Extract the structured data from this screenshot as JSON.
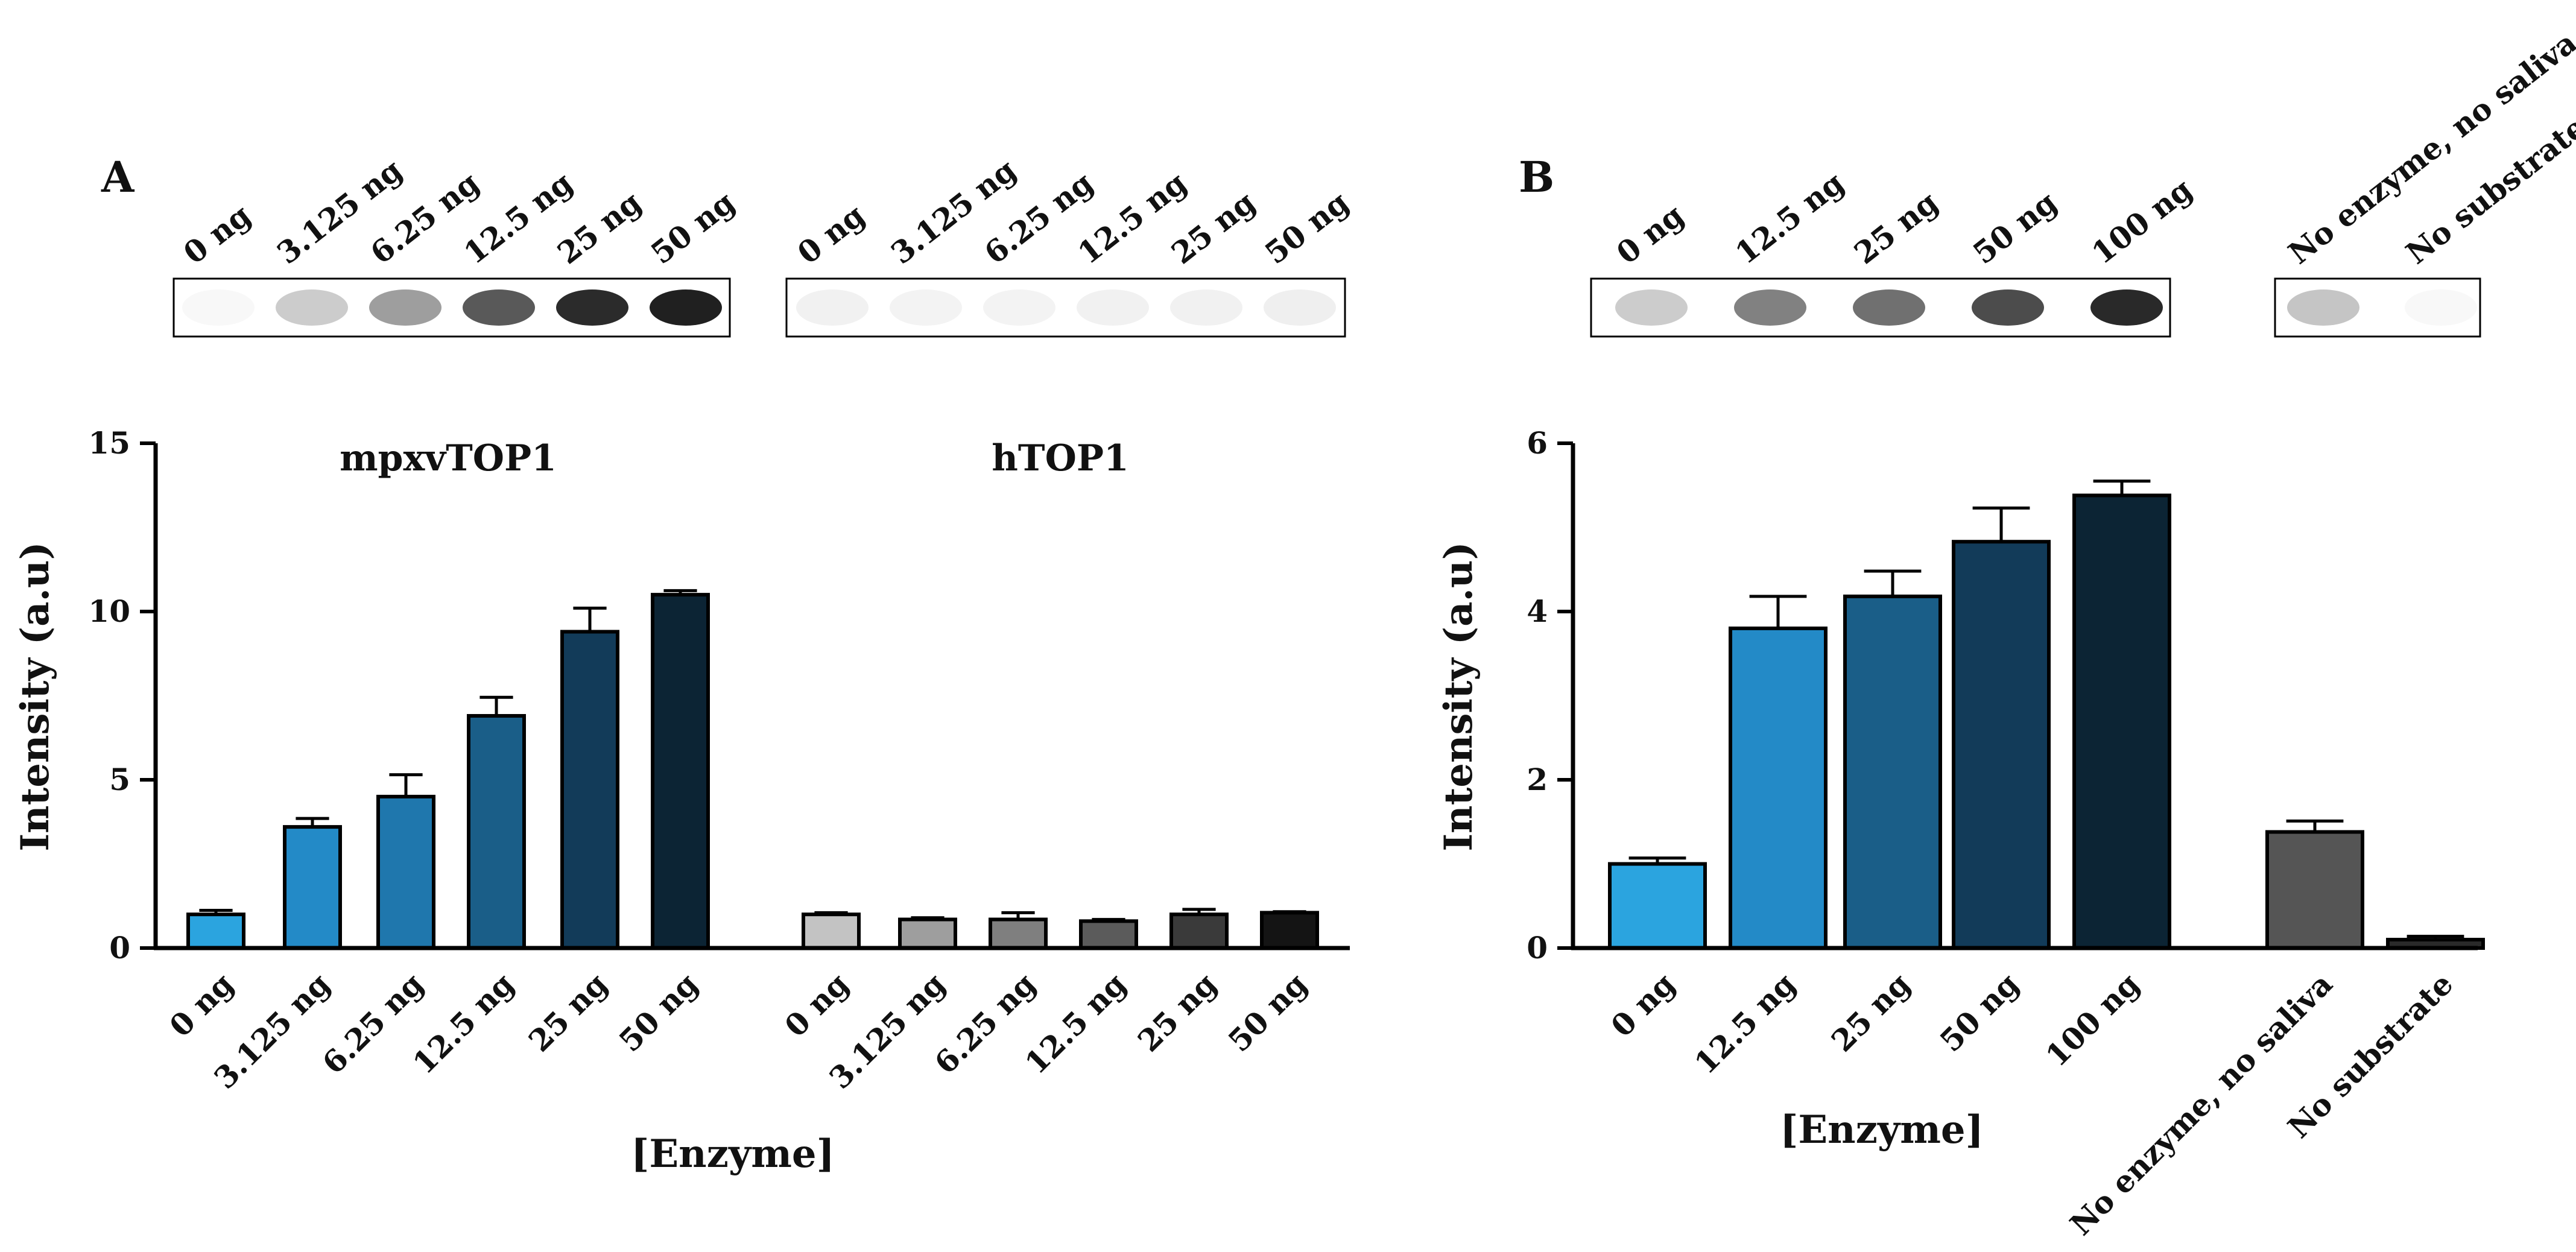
{
  "panels": {
    "A": {
      "letter": "A",
      "gels": [
        {
          "lanes": [
            "0 ng",
            "3.125 ng",
            "6.25 ng",
            "12.5 ng",
            "25 ng",
            "50 ng"
          ],
          "band_darkness": [
            0.03,
            0.22,
            0.42,
            0.72,
            0.92,
            0.97
          ]
        },
        {
          "lanes": [
            "0 ng",
            "3.125 ng",
            "6.25 ng",
            "12.5 ng",
            "25 ng",
            "50 ng"
          ],
          "band_darkness": [
            0.06,
            0.05,
            0.05,
            0.06,
            0.06,
            0.07
          ]
        }
      ]
    },
    "B": {
      "letter": "B",
      "gels": [
        {
          "lanes": [
            "0 ng",
            "12.5 ng",
            "25 ng",
            "50 ng",
            "100 ng"
          ],
          "band_darkness": [
            0.22,
            0.55,
            0.62,
            0.78,
            0.93
          ]
        },
        {
          "lanes": [
            "No enzyme, no saliva",
            "No substrate"
          ],
          "band_darkness": [
            0.25,
            0.03
          ]
        }
      ]
    }
  },
  "chart_data": [
    {
      "type": "bar",
      "panel": "A",
      "ylabel": "Intensity (a.u)",
      "xlabel": "[Enzyme]",
      "ylim": [
        0,
        15
      ],
      "yticks": [
        0,
        5,
        10,
        15
      ],
      "groups": [
        {
          "name": "mpxvTOP1",
          "categories": [
            "0 ng",
            "3.125 ng",
            "6.25 ng",
            "12.5 ng",
            "25 ng",
            "50 ng"
          ],
          "values": [
            1.0,
            3.6,
            4.5,
            6.9,
            9.4,
            10.5
          ],
          "errors": [
            0.12,
            0.25,
            0.65,
            0.55,
            0.7,
            0.12
          ],
          "colors": [
            "#2ba4df",
            "#238ac7",
            "#1f77ad",
            "#1a5e88",
            "#123b59",
            "#0c2434"
          ]
        },
        {
          "name": "hTOP1",
          "categories": [
            "0 ng",
            "3.125 ng",
            "6.25 ng",
            "12.5 ng",
            "25 ng",
            "50 ng"
          ],
          "values": [
            1.0,
            0.85,
            0.85,
            0.8,
            1.0,
            1.05
          ],
          "errors": [
            0.05,
            0.05,
            0.2,
            0.05,
            0.15,
            0.03
          ],
          "colors": [
            "#c3c3c3",
            "#9e9e9e",
            "#7f7f7f",
            "#5b5b5b",
            "#3a3a3a",
            "#141414"
          ]
        }
      ]
    },
    {
      "type": "bar",
      "panel": "B",
      "ylabel": "Intensity (a.u)",
      "xlabel": "[Enzyme]",
      "ylim": [
        0,
        6
      ],
      "yticks": [
        0,
        2,
        4,
        6
      ],
      "groups": [
        {
          "name": "",
          "categories": [
            "0 ng",
            "12.5 ng",
            "25 ng",
            "50 ng",
            "100 ng"
          ],
          "values": [
            1.0,
            3.8,
            4.18,
            4.83,
            5.38
          ],
          "errors": [
            0.07,
            0.38,
            0.3,
            0.4,
            0.17
          ],
          "colors": [
            "#2ba4df",
            "#238ac7",
            "#1a5e88",
            "#123b59",
            "#0c2434"
          ]
        },
        {
          "name": "",
          "categories": [
            "No enzyme, no saliva",
            "No substrate"
          ],
          "values": [
            1.38,
            0.1
          ],
          "errors": [
            0.13,
            0.04
          ],
          "colors": [
            "#555555",
            "#2a2a2a"
          ]
        }
      ]
    }
  ]
}
